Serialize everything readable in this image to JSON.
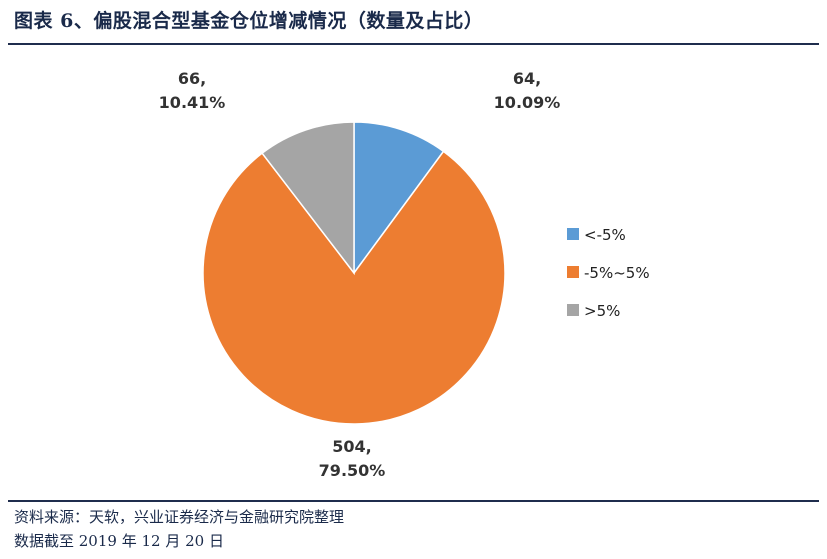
{
  "title": "图表 6、偏股混合型基金仓位增减情况（数量及占比）",
  "footer": {
    "source": "资料来源：天软，兴业证券经济与金融研究院整理",
    "date": "数据截至 2019 年 12 月 20 日"
  },
  "chart_data": {
    "type": "pie",
    "categories": [
      "<-5%",
      "-5%~5%",
      ">5%"
    ],
    "values": [
      64,
      504,
      66
    ],
    "percent_labels": [
      "10.09%",
      "79.50%",
      "10.41%"
    ],
    "colors": [
      "#5b9bd5",
      "#ed7d31",
      "#a5a5a5"
    ],
    "legend_position": "right",
    "start_angle": "12 o'clock",
    "direction": "clockwise"
  }
}
